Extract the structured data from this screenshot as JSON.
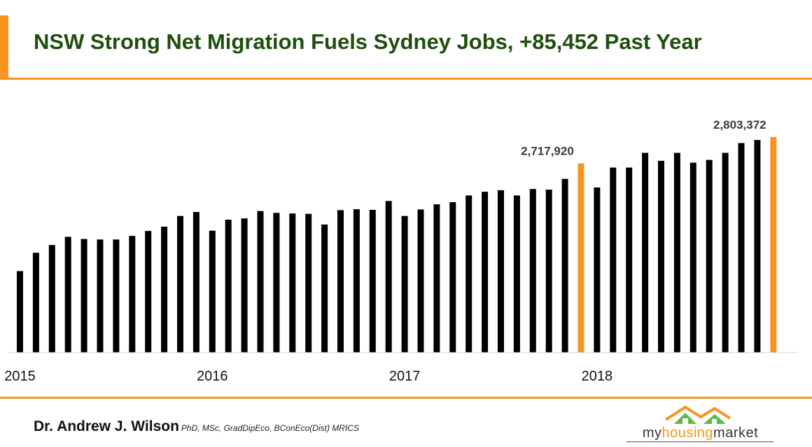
{
  "header": {
    "title": "NSW Strong Net Migration Fuels Sydney Jobs, +85,452 Past Year"
  },
  "footer": {
    "author_name": "Dr. Andrew J. Wilson",
    "author_credentials": "PhD, MSc, GradDipEco, BConEco(Dist) MRICS",
    "logo_part1": "my",
    "logo_part2": "housing",
    "logo_part3": "market"
  },
  "colors": {
    "bar_default": "#000000",
    "bar_highlight": "#f7941d",
    "title": "#1f4e0f",
    "accent": "#f7941d",
    "logo_green": "#5fb84a"
  },
  "chart_data": {
    "type": "bar",
    "title": "NSW Strong Net Migration Fuels Sydney Jobs, +85,452 Past Year",
    "xlabel": "",
    "ylabel": "",
    "ylim": [
      2100000,
      2840000
    ],
    "grid": false,
    "legend": "none",
    "year_labels": [
      {
        "label": "2015",
        "index": 0
      },
      {
        "label": "2016",
        "index": 12
      },
      {
        "label": "2017",
        "index": 24
      },
      {
        "label": "2018",
        "index": 36
      }
    ],
    "highlight_indices": [
      35,
      47
    ],
    "data_labels": [
      {
        "index": 35,
        "text": "2,717,920"
      },
      {
        "index": 47,
        "text": "2,803,372"
      }
    ],
    "values": [
      2366000,
      2426000,
      2451000,
      2478000,
      2471000,
      2469000,
      2469000,
      2481000,
      2497000,
      2511000,
      2546000,
      2559000,
      2498000,
      2534000,
      2538000,
      2562000,
      2556000,
      2554000,
      2553000,
      2518000,
      2565000,
      2568000,
      2566000,
      2595000,
      2546000,
      2567000,
      2584000,
      2591000,
      2613000,
      2625000,
      2630000,
      2613000,
      2634000,
      2632000,
      2667000,
      2717920,
      2639000,
      2704000,
      2704000,
      2752000,
      2726000,
      2752000,
      2720000,
      2729000,
      2752000,
      2784000,
      2794000,
      2803372
    ]
  }
}
